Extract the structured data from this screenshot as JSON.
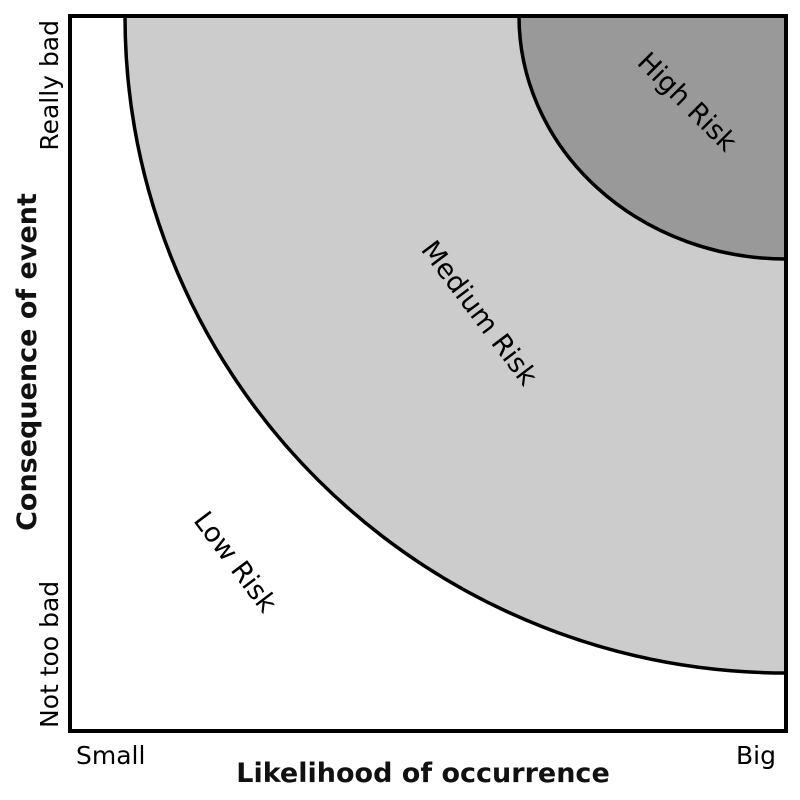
{
  "x_axis": {
    "title": "Likelihood of occurrence",
    "low_label": "Small",
    "high_label": "Big"
  },
  "y_axis": {
    "title": "Consequence of event",
    "low_label": "Not too bad",
    "high_label": "Really bad"
  },
  "zones": [
    {
      "label": "Low Risk",
      "color": "#ffffff"
    },
    {
      "label": "Medium Risk",
      "color": "#cccccc"
    },
    {
      "label": "High Risk",
      "color": "#999999"
    }
  ],
  "colors": {
    "outline": "#000000"
  }
}
